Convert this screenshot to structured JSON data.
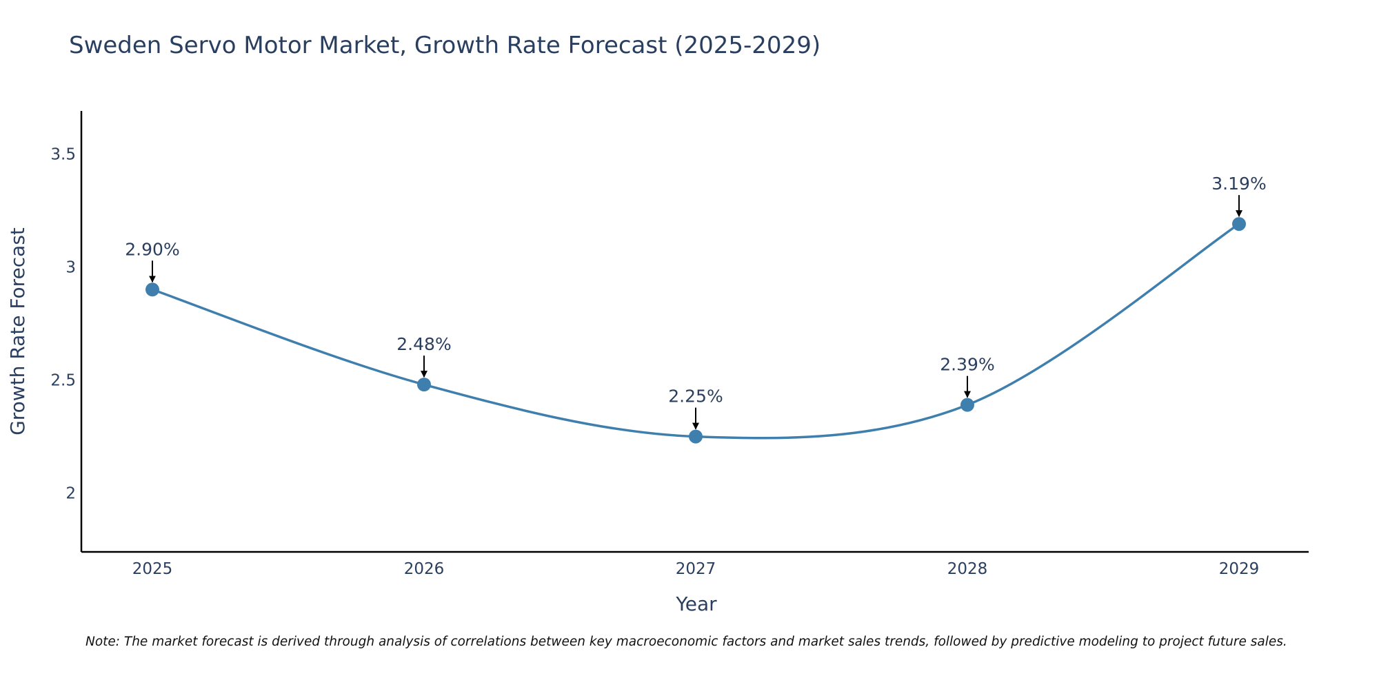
{
  "chart_data": {
    "type": "line",
    "title": "Sweden Servo Motor Market, Growth Rate Forecast (2025-2029)",
    "xlabel": "Year",
    "ylabel": "Growth Rate Forecast",
    "categories": [
      "2025",
      "2026",
      "2027",
      "2028",
      "2029"
    ],
    "series": [
      {
        "name": "Growth Rate Forecast",
        "values": [
          2.9,
          2.48,
          2.25,
          2.39,
          3.19
        ]
      }
    ],
    "data_labels": [
      "2.90%",
      "2.48%",
      "2.25%",
      "2.39%",
      "3.19%"
    ],
    "ylim": [
      1.74,
      3.69
    ],
    "yticks": [
      2,
      2.5,
      3,
      3.5
    ],
    "ytick_labels": [
      "2",
      "2.5",
      "3",
      "3.5"
    ],
    "grid": false,
    "line_color": "#3f7fad",
    "marker_color": "#3f7fad",
    "note": "Note: The market forecast is derived through analysis of correlations between key macroeconomic factors and market sales trends, followed by predictive modeling to project future sales."
  }
}
